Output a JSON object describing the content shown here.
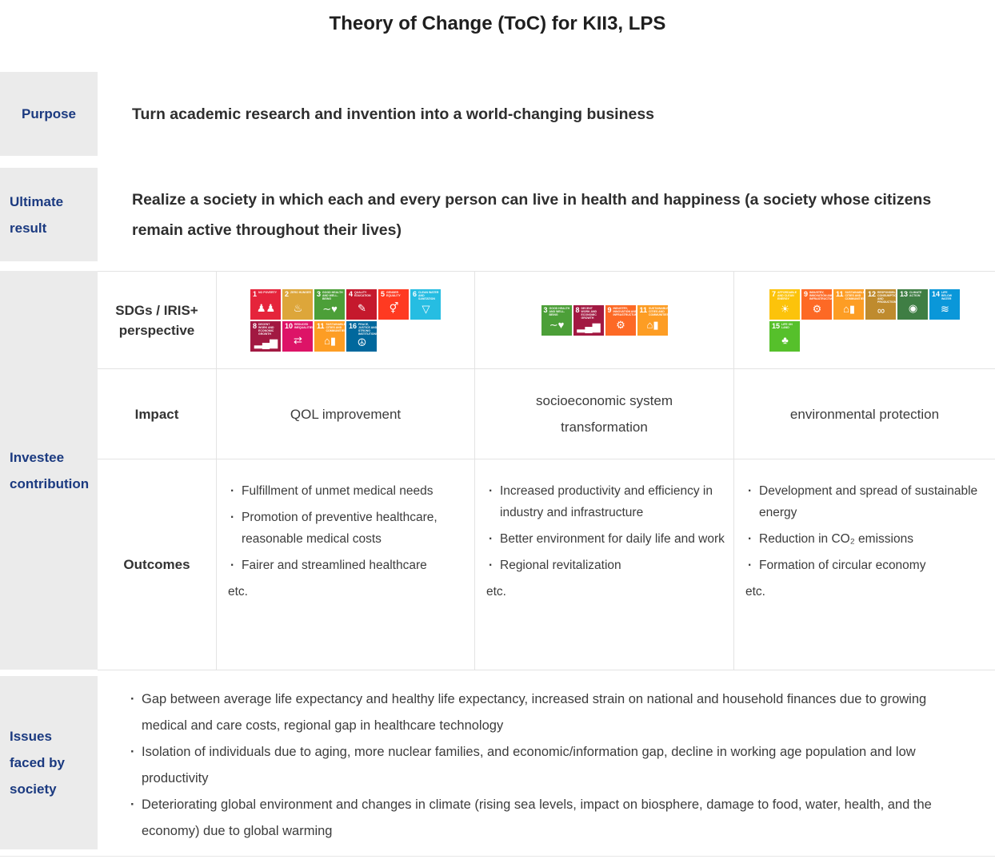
{
  "page_title": "Theory of Change (ToC) for KII3, LPS",
  "colors": {
    "accent_navy": "#1b3a80",
    "label_background": "#ebebeb",
    "table_border": "#e3e3e3",
    "body_text": "#3c3c3c"
  },
  "purpose": {
    "label": "Purpose",
    "text": "Turn academic research and invention into a world-changing business"
  },
  "ultimate_result": {
    "label": "Ultimate result",
    "text": "Realize a society in which each and every person can live in health and happiness (a society whose citizens remain active throughout their lives)"
  },
  "investee": {
    "label": "Investee contribution",
    "row_labels": {
      "sdgs": "SDGs / IRIS+ perspective",
      "impact": "Impact",
      "outcomes": "Outcomes"
    },
    "etc_label": "etc.",
    "columns": [
      {
        "impact": "QOL improvement",
        "sdg_rows": [
          [
            1,
            2,
            3,
            4,
            5,
            6
          ],
          [
            8,
            10,
            11,
            16
          ]
        ],
        "outcomes": [
          "Fulfillment of unmet medical needs",
          "Promotion of preventive healthcare, reasonable medical costs",
          "Fairer and streamlined healthcare"
        ]
      },
      {
        "impact": "socioeconomic system transformation",
        "sdg_rows": [
          [
            3,
            8,
            9,
            11
          ]
        ],
        "outcomes": [
          "Increased productivity and efficiency in industry and infrastructure",
          "Better environment for daily life and work",
          "Regional revitalization"
        ]
      },
      {
        "impact": "environmental protection",
        "sdg_rows": [
          [
            7,
            9,
            11,
            12,
            13,
            14
          ],
          [
            15
          ]
        ],
        "outcomes": [
          "Development and spread of sustainable energy",
          "Reduction in CO₂ emissions",
          "Formation of circular economy"
        ]
      }
    ]
  },
  "issues": {
    "label": "Issues faced by society",
    "items": [
      "Gap between average life expectancy and healthy life expectancy, increased strain on national and household finances due to growing medical and care costs, regional gap in healthcare technology",
      "Isolation of individuals due to aging, more nuclear families, and economic/information gap, decline in working age population and low productivity",
      "Deteriorating global environment and changes in climate (rising sea levels, impact on biosphere, damage to food, water, health, and the economy) due to global warming"
    ]
  },
  "sdg_catalog": {
    "1": {
      "name": "No Poverty",
      "color": "#E5243B",
      "glyph": "♟♟"
    },
    "2": {
      "name": "Zero Hunger",
      "color": "#DDA63A",
      "glyph": "♨"
    },
    "3": {
      "name": "Good Health and Well-Being",
      "color": "#4C9F38",
      "glyph": "∼♥"
    },
    "4": {
      "name": "Quality Education",
      "color": "#C5192D",
      "glyph": "✎"
    },
    "5": {
      "name": "Gender Equality",
      "color": "#FF3A21",
      "glyph": "⚥"
    },
    "6": {
      "name": "Clean Water and Sanitation",
      "color": "#26BDE2",
      "glyph": "▽"
    },
    "7": {
      "name": "Affordable and Clean Energy",
      "color": "#FCC30B",
      "glyph": "☀"
    },
    "8": {
      "name": "Decent Work and Economic Growth",
      "color": "#A21942",
      "glyph": "▂▄▆"
    },
    "9": {
      "name": "Industry, Innovation and Infrastructure",
      "color": "#FD6925",
      "glyph": "⚙"
    },
    "10": {
      "name": "Reduced Inequalities",
      "color": "#DD1367",
      "glyph": "⇄"
    },
    "11": {
      "name": "Sustainable Cities and Communities",
      "color": "#FD9D24",
      "glyph": "⌂▮"
    },
    "12": {
      "name": "Responsible Consumption and Production",
      "color": "#BF8B2E",
      "glyph": "∞"
    },
    "13": {
      "name": "Climate Action",
      "color": "#3F7E44",
      "glyph": "◉"
    },
    "14": {
      "name": "Life Below Water",
      "color": "#0A97D9",
      "glyph": "≋"
    },
    "15": {
      "name": "Life on Land",
      "color": "#56C02B",
      "glyph": "♣"
    },
    "16": {
      "name": "Peace, Justice and Strong Institutions",
      "color": "#00689D",
      "glyph": "☮"
    }
  }
}
